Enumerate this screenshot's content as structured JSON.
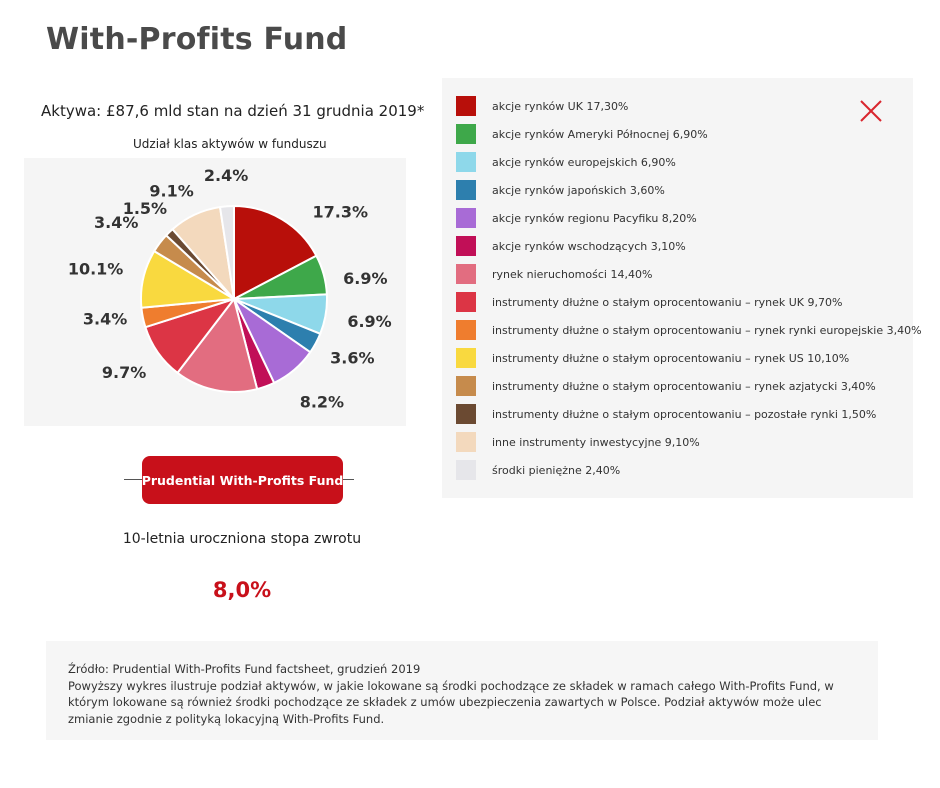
{
  "page": {
    "title": "With-Profits Fund",
    "assets_line": "Aktywa: £87,6 mld stan na dzień 31 grudnia 2019*",
    "chart_subtitle": "Udział klas aktywów w funduszu"
  },
  "chart_data": {
    "type": "pie",
    "title": "Udział klas aktywów w funduszu",
    "slices": [
      {
        "name": "akcje rynków UK 17,30%",
        "value": 17.3,
        "label": "17.3%",
        "color": "#b80f0a"
      },
      {
        "name": "akcje rynków Ameryki Północnej 6,90%",
        "value": 6.9,
        "label": "6.9%",
        "color": "#3ea84a"
      },
      {
        "name": "akcje rynków europejskich 6,90%",
        "value": 6.9,
        "label": "6.9%",
        "color": "#8ed8ea"
      },
      {
        "name": "akcje rynków japońskich 3,60%",
        "value": 3.6,
        "label": "3.6%",
        "color": "#2d7fae"
      },
      {
        "name": "akcje rynków regionu Pacyfiku 8,20%",
        "value": 8.2,
        "label": "8.2%",
        "color": "#a86bd6"
      },
      {
        "name": "akcje rynków wschodzących 3,10%",
        "value": 3.1,
        "label": "",
        "color": "#c10f57"
      },
      {
        "name": "rynek nieruchomości 14,40%",
        "value": 14.4,
        "label": "",
        "color": "#e26d80"
      },
      {
        "name": "instrumenty dłużne o stałym oprocentowaniu – rynek UK 9,70%",
        "value": 9.7,
        "label": "9.7%",
        "color": "#dc3545"
      },
      {
        "name": "instrumenty dłużne o stałym oprocentowaniu – rynek rynki europejskie 3,40%",
        "value": 3.4,
        "label": "3.4%",
        "color": "#ef7d2e"
      },
      {
        "name": "instrumenty dłużne o stałym oprocentowaniu – rynek US 10,10%",
        "value": 10.1,
        "label": "10.1%",
        "color": "#f9d93f"
      },
      {
        "name": "instrumenty dłużne o stałym oprocentowaniu – rynek azjatycki 3,40%",
        "value": 3.4,
        "label": "3.4%",
        "color": "#c68b4c"
      },
      {
        "name": "instrumenty dłużne o stałym oprocentowaniu – pozostałe rynki 1,50%",
        "value": 1.5,
        "label": "1.5%",
        "color": "#6b4a32"
      },
      {
        "name": "inne instrumenty inwestycyjne 9,10%",
        "value": 9.1,
        "label": "9.1%",
        "color": "#f3d9bd"
      },
      {
        "name": "środki pieniężne 2,40%",
        "value": 2.4,
        "label": "2.4%",
        "color": "#e6e6ea"
      }
    ],
    "legend_placement": "right"
  },
  "fund": {
    "badge_label": "Prudential With-Profits Fund",
    "return_label": "10-letnia uroczniona stopa zwrotu",
    "return_value": "8,0%"
  },
  "note": {
    "source_line": "Źródło: Prudential With-Profits Fund factsheet, grudzień 2019",
    "body_text": "Powyższy wykres ilustruje podział aktywów, w jakie lokowane są środki pochodzące ze składek w ramach całego With-Profits Fund, w którym lokowane są również środki pochodzące ze składek z umów ubezpieczenia zawartych w Polsce. Podział aktywów może ulec zmianie zgodnie z polityką lokacyjną With-Profits Fund."
  },
  "icons": {
    "close": "close-icon",
    "accent_color": "#c8101a"
  }
}
